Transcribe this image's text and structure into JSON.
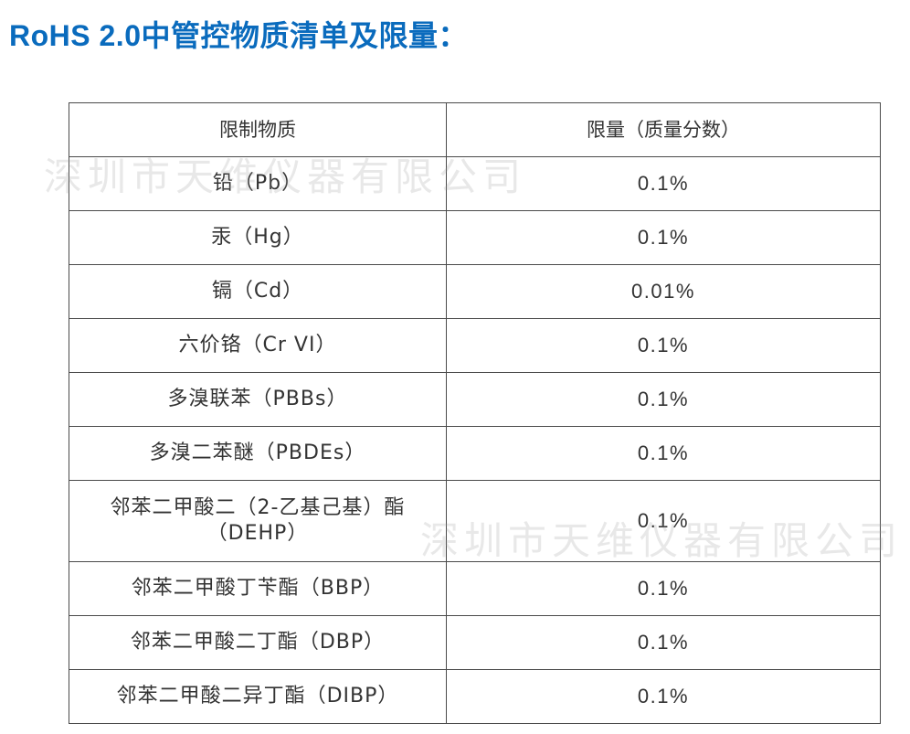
{
  "title": "RoHS 2.0中管控物质清单及限量：",
  "colors": {
    "title": "#0a6bbd",
    "text": "#333333",
    "border": "#4a4a4a"
  },
  "table": {
    "headers": {
      "substance": "限制物质",
      "limit": "限量（质量分数）"
    },
    "rows": [
      {
        "substance": "铅（Pb）",
        "limit": "0.1%"
      },
      {
        "substance": "汞（Hg）",
        "limit": "0.1%"
      },
      {
        "substance": "镉（Cd）",
        "limit": "0.01%"
      },
      {
        "substance": "六价铬（Cr VI）",
        "limit": "0.1%"
      },
      {
        "substance": "多溴联苯（PBBs）",
        "limit": "0.1%"
      },
      {
        "substance": "多溴二苯醚（PBDEs）",
        "limit": "0.1%"
      },
      {
        "substance": "邻苯二甲酸二（2-乙基己基）酯（DEHP）",
        "limit": "0.1%"
      },
      {
        "substance": "邻苯二甲酸丁苄酯（BBP）",
        "limit": "0.1%"
      },
      {
        "substance": "邻苯二甲酸二丁酯（DBP）",
        "limit": "0.1%"
      },
      {
        "substance": "邻苯二甲酸二异丁酯（DIBP）",
        "limit": "0.1%"
      }
    ]
  },
  "watermark": "深圳市天维仪器有限公司"
}
